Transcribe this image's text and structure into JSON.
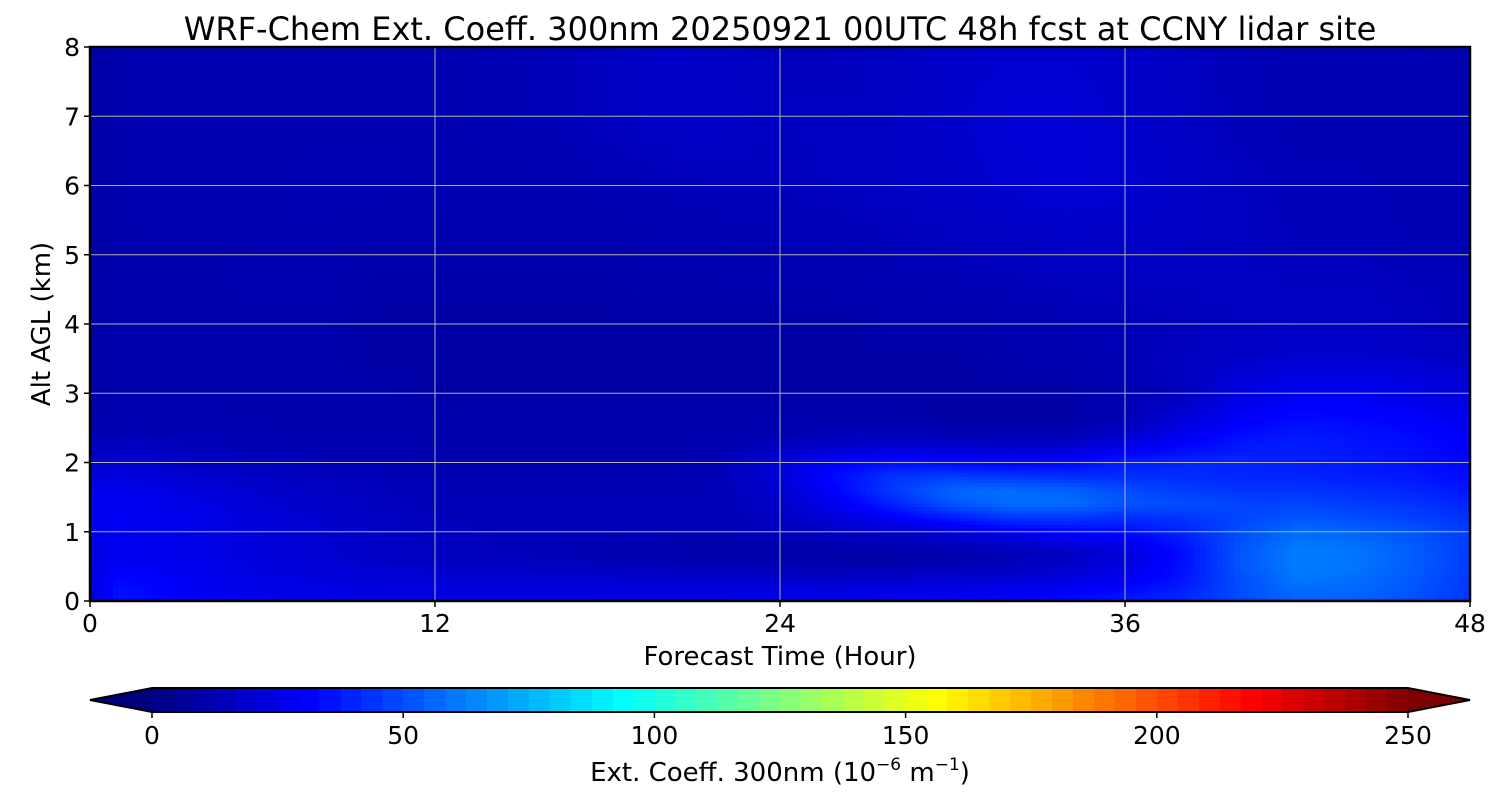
{
  "chart_data": {
    "type": "heatmap",
    "title": "WRF-Chem Ext. Coeff. 300nm  20250921 00UTC 48h fcst at CCNY lidar site",
    "xlabel": "Forecast Time (Hour)",
    "ylabel": "Alt AGL (km)",
    "xlim": [
      0,
      48
    ],
    "ylim": [
      0,
      8
    ],
    "xticks": [
      "0",
      "12",
      "24",
      "36",
      "48"
    ],
    "yticks": [
      "0",
      "1",
      "2",
      "3",
      "4",
      "5",
      "6",
      "7",
      "8"
    ],
    "grid": true,
    "colormap": "jet",
    "colorbar": {
      "label_main": "Ext. Coeff. 300nm  (10",
      "label_exp1": "−6",
      "label_mid": " m",
      "label_exp2": "−1",
      "label_end": ")",
      "range": [
        0,
        250
      ],
      "ticks": [
        "0",
        "50",
        "100",
        "150",
        "200",
        "250"
      ],
      "extend": "both",
      "under_color": "#00007f",
      "over_color": "#7f0000"
    },
    "field": {
      "x": [
        0,
        1,
        2,
        4,
        6,
        8,
        10,
        12,
        14,
        16,
        18,
        20,
        22,
        24,
        26,
        28,
        30,
        32,
        34,
        36,
        38,
        40,
        42,
        44,
        46,
        47,
        48
      ],
      "y": [
        0,
        0.1,
        0.3,
        0.5,
        0.7,
        1.0,
        1.2,
        1.4,
        1.6,
        1.8,
        2.0,
        2.3,
        2.6,
        3.0,
        3.5,
        4.0,
        5.0,
        6.0,
        7.0,
        8.0
      ],
      "values": [
        [
          20,
          34,
          32,
          27,
          26,
          25,
          24,
          24,
          24,
          24,
          24,
          25,
          25,
          25,
          25,
          26,
          27,
          29,
          32,
          36,
          40,
          48,
          55,
          54,
          50,
          47,
          44
        ],
        [
          22,
          36,
          33,
          28,
          26,
          25,
          24,
          24,
          24,
          24,
          24,
          24,
          24,
          25,
          25,
          26,
          27,
          28,
          31,
          35,
          40,
          50,
          57,
          56,
          52,
          48,
          45
        ],
        [
          24,
          33,
          31,
          27,
          25,
          23,
          22,
          21,
          21,
          21,
          20,
          20,
          20,
          20,
          19,
          20,
          21,
          22,
          24,
          28,
          36,
          50,
          60,
          58,
          53,
          49,
          45
        ],
        [
          24,
          30,
          29,
          26,
          23,
          21,
          19,
          18,
          17,
          16,
          15,
          14,
          13,
          13,
          12,
          12,
          13,
          15,
          18,
          24,
          35,
          52,
          62,
          60,
          54,
          50,
          46
        ],
        [
          23,
          28,
          27,
          25,
          22,
          20,
          18,
          16,
          15,
          14,
          12,
          11,
          10,
          10,
          10,
          10,
          11,
          13,
          16,
          22,
          34,
          52,
          62,
          60,
          54,
          50,
          46
        ],
        [
          25,
          28,
          27,
          25,
          22,
          20,
          17,
          16,
          15,
          14,
          13,
          13,
          13,
          15,
          17,
          18,
          22,
          28,
          32,
          34,
          40,
          50,
          58,
          56,
          52,
          49,
          46
        ],
        [
          28,
          30,
          28,
          26,
          22,
          19,
          16,
          15,
          14,
          14,
          14,
          14,
          14,
          16,
          22,
          30,
          38,
          44,
          45,
          42,
          44,
          48,
          52,
          50,
          47,
          45,
          43
        ],
        [
          28,
          29,
          27,
          24,
          20,
          18,
          16,
          14,
          14,
          14,
          14,
          14,
          14,
          18,
          28,
          40,
          52,
          58,
          58,
          52,
          50,
          48,
          48,
          46,
          44,
          42,
          40
        ],
        [
          26,
          27,
          25,
          22,
          19,
          17,
          15,
          14,
          13,
          13,
          13,
          13,
          14,
          20,
          32,
          46,
          56,
          58,
          55,
          50,
          46,
          44,
          44,
          42,
          40,
          38,
          36
        ],
        [
          22,
          24,
          22,
          19,
          17,
          15,
          14,
          13,
          12,
          12,
          12,
          12,
          14,
          22,
          34,
          44,
          46,
          44,
          42,
          42,
          42,
          40,
          40,
          38,
          37,
          35,
          34
        ],
        [
          18,
          20,
          19,
          17,
          15,
          14,
          13,
          12,
          12,
          12,
          11,
          12,
          14,
          22,
          30,
          34,
          32,
          30,
          32,
          38,
          40,
          40,
          38,
          37,
          35,
          33,
          32
        ],
        [
          14,
          15,
          15,
          14,
          13,
          12,
          12,
          11,
          11,
          11,
          11,
          11,
          12,
          14,
          16,
          17,
          16,
          15,
          16,
          22,
          30,
          36,
          38,
          36,
          34,
          32,
          30
        ],
        [
          11,
          12,
          12,
          12,
          11,
          11,
          11,
          11,
          11,
          11,
          11,
          11,
          11,
          11,
          11,
          11,
          10,
          10,
          10,
          14,
          22,
          30,
          34,
          33,
          31,
          29,
          27
        ],
        [
          10,
          11,
          11,
          11,
          11,
          11,
          11,
          10,
          10,
          10,
          10,
          10,
          10,
          10,
          10,
          10,
          10,
          10,
          10,
          12,
          16,
          24,
          28,
          28,
          26,
          24,
          22
        ],
        [
          10,
          11,
          11,
          11,
          11,
          11,
          10,
          10,
          10,
          10,
          10,
          10,
          10,
          10,
          10,
          10,
          10,
          11,
          12,
          14,
          16,
          18,
          20,
          20,
          19,
          18,
          17
        ],
        [
          10,
          11,
          11,
          11,
          11,
          11,
          10,
          10,
          10,
          10,
          10,
          10,
          10,
          10,
          10,
          11,
          11,
          12,
          13,
          14,
          15,
          16,
          17,
          17,
          16,
          15,
          14
        ],
        [
          10,
          11,
          11,
          11,
          12,
          12,
          11,
          11,
          11,
          11,
          11,
          12,
          12,
          13,
          13,
          14,
          15,
          16,
          17,
          17,
          17,
          16,
          15,
          15,
          14,
          14,
          13
        ],
        [
          10,
          11,
          12,
          12,
          12,
          13,
          13,
          12,
          12,
          12,
          13,
          14,
          15,
          15,
          16,
          17,
          18,
          20,
          21,
          20,
          18,
          16,
          14,
          14,
          13,
          13,
          13
        ],
        [
          10,
          11,
          12,
          12,
          12,
          12,
          12,
          12,
          13,
          14,
          16,
          18,
          18,
          16,
          16,
          17,
          19,
          21,
          21,
          19,
          17,
          14,
          13,
          13,
          13,
          13,
          12
        ],
        [
          10,
          11,
          12,
          12,
          12,
          12,
          12,
          12,
          13,
          14,
          16,
          18,
          17,
          15,
          15,
          16,
          18,
          19,
          19,
          18,
          16,
          14,
          13,
          13,
          13,
          12,
          12
        ]
      ]
    }
  }
}
